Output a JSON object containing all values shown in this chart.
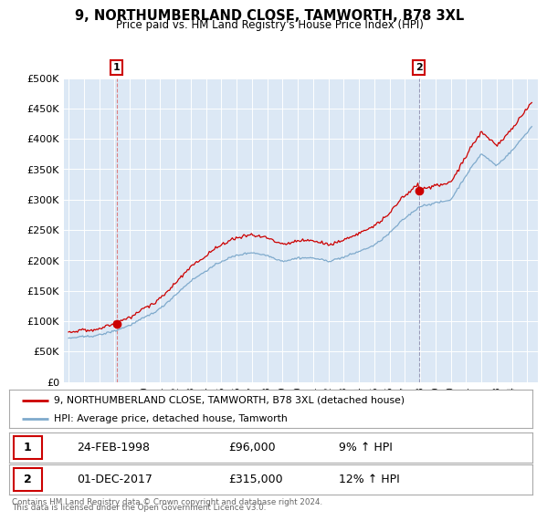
{
  "title": "9, NORTHUMBERLAND CLOSE, TAMWORTH, B78 3XL",
  "subtitle": "Price paid vs. HM Land Registry's House Price Index (HPI)",
  "red_label": "9, NORTHUMBERLAND CLOSE, TAMWORTH, B78 3XL (detached house)",
  "blue_label": "HPI: Average price, detached house, Tamworth",
  "sale1_date": "24-FEB-1998",
  "sale1_price": 96000,
  "sale1_pct": "9% ↑ HPI",
  "sale2_date": "01-DEC-2017",
  "sale2_price": 315000,
  "sale2_pct": "12% ↑ HPI",
  "sale1_year": 1998.15,
  "sale2_year": 2017.92,
  "footer": "Contains HM Land Registry data © Crown copyright and database right 2024.\nThis data is licensed under the Open Government Licence v3.0.",
  "ylim": [
    0,
    500000
  ],
  "yticks": [
    0,
    50000,
    100000,
    150000,
    200000,
    250000,
    300000,
    350000,
    400000,
    450000,
    500000
  ],
  "background_color": "#ffffff",
  "plot_bg_color": "#dce8f5",
  "grid_color": "#ffffff",
  "red_line_color": "#cc0000",
  "blue_line_color": "#7faacc",
  "vline1_color": "#dd6666",
  "vline2_color": "#8888aa"
}
